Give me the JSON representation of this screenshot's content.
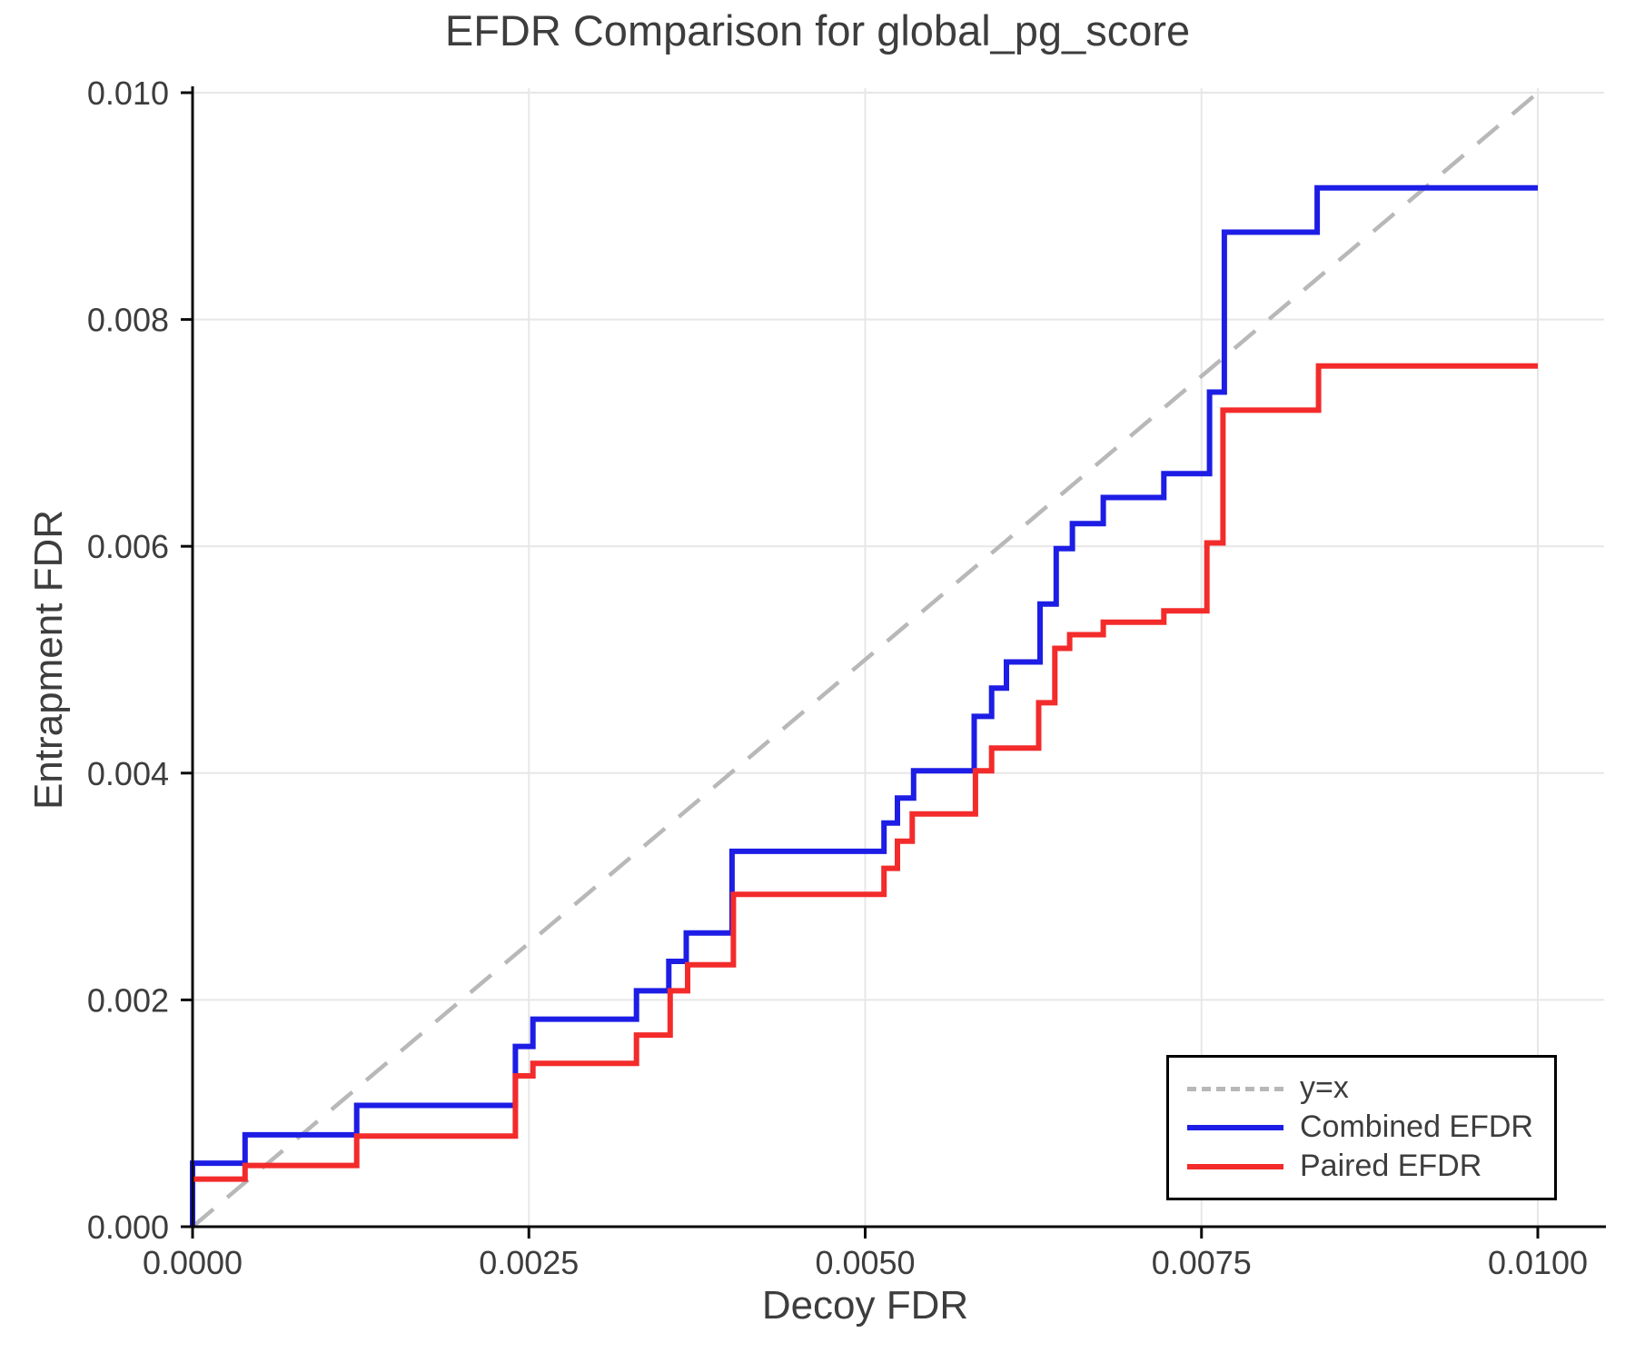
{
  "chart_data": {
    "type": "line",
    "subtype": "step",
    "title": "EFDR Comparison for global_pg_score",
    "xlabel": "Decoy FDR",
    "ylabel": "Entrapment FDR",
    "xlim": [
      0.0,
      0.01
    ],
    "ylim": [
      0.0,
      0.01
    ],
    "grid": true,
    "legend_position": "bottom-right",
    "xticks": {
      "values": [
        0.0,
        0.0025,
        0.005,
        0.0075,
        0.01
      ],
      "labels": [
        "0.0000",
        "0.0025",
        "0.0050",
        "0.0075",
        "0.0100"
      ]
    },
    "yticks": {
      "values": [
        0.0,
        0.002,
        0.004,
        0.006,
        0.008,
        0.01
      ],
      "labels": [
        "0.000",
        "0.002",
        "0.004",
        "0.006",
        "0.008",
        "0.010"
      ]
    },
    "reference_line": {
      "name": "y=x",
      "from": [
        0.0,
        0.0
      ],
      "to": [
        0.01,
        0.01
      ],
      "color": "#b8b8b8",
      "dashed": true
    },
    "legend": {
      "entries": [
        {
          "label": "y=x",
          "color": "#b8b8b8",
          "style": "dashed"
        },
        {
          "label": "Combined EFDR",
          "color": "#1d1de6",
          "style": "solid"
        },
        {
          "label": "Paired EFDR",
          "color": "#f32b2b",
          "style": "solid"
        }
      ]
    },
    "series": [
      {
        "name": "Combined EFDR",
        "color": "#1d1de6",
        "step": "post",
        "points": [
          [
            0.0,
            0.0
          ],
          [
            0.0,
            0.00056
          ],
          [
            0.00039,
            0.00081
          ],
          [
            0.00122,
            0.00107
          ],
          [
            0.0024,
            0.00159
          ],
          [
            0.00253,
            0.00183
          ],
          [
            0.0033,
            0.00208
          ],
          [
            0.00354,
            0.00234
          ],
          [
            0.00367,
            0.00259
          ],
          [
            0.00401,
            0.00331
          ],
          [
            0.00514,
            0.00356
          ],
          [
            0.00524,
            0.00378
          ],
          [
            0.00536,
            0.00402
          ],
          [
            0.00581,
            0.0045
          ],
          [
            0.00594,
            0.00475
          ],
          [
            0.00605,
            0.00498
          ],
          [
            0.0063,
            0.00549
          ],
          [
            0.00642,
            0.00598
          ],
          [
            0.00654,
            0.0062
          ],
          [
            0.00677,
            0.00643
          ],
          [
            0.00722,
            0.00664
          ],
          [
            0.00756,
            0.00736
          ],
          [
            0.00767,
            0.00877
          ],
          [
            0.00836,
            0.00916
          ],
          [
            0.01,
            0.00916
          ]
        ]
      },
      {
        "name": "Paired EFDR",
        "color": "#f32b2b",
        "step": "post",
        "points": [
          [
            0.0,
            0.00042
          ],
          [
            0.00039,
            0.00054
          ],
          [
            0.00122,
            0.0008
          ],
          [
            0.0024,
            0.00133
          ],
          [
            0.00253,
            0.00144
          ],
          [
            0.0033,
            0.00169
          ],
          [
            0.00355,
            0.00208
          ],
          [
            0.00368,
            0.00231
          ],
          [
            0.00402,
            0.00293
          ],
          [
            0.00514,
            0.00316
          ],
          [
            0.00524,
            0.0034
          ],
          [
            0.00535,
            0.00364
          ],
          [
            0.00582,
            0.00402
          ],
          [
            0.00594,
            0.00422
          ],
          [
            0.00629,
            0.00462
          ],
          [
            0.00641,
            0.0051
          ],
          [
            0.00652,
            0.00522
          ],
          [
            0.00677,
            0.00533
          ],
          [
            0.00722,
            0.00543
          ],
          [
            0.00754,
            0.00603
          ],
          [
            0.00766,
            0.0072
          ],
          [
            0.00837,
            0.00759
          ],
          [
            0.01,
            0.00759
          ]
        ]
      }
    ],
    "style": {
      "grid_color": "#e7e7e7",
      "spine_color": "#0a0a0a",
      "text_color": "#3d3d3d",
      "background": "#ffffff"
    }
  }
}
